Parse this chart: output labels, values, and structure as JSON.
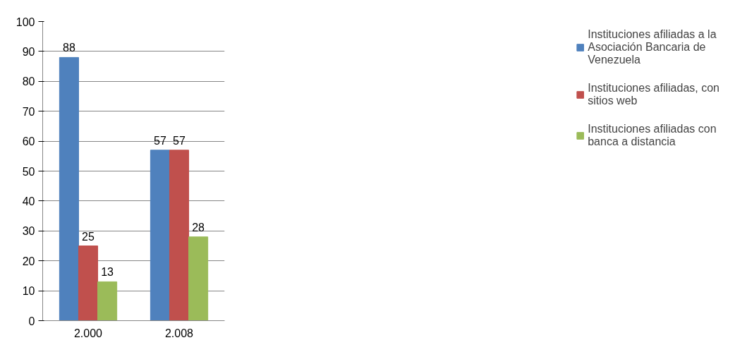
{
  "chart_data": {
    "type": "bar",
    "categories": [
      "2.000",
      "2.008"
    ],
    "series": [
      {
        "name": "Instituciones afiliadas a la Asociación Bancaria de Venezuela",
        "color": "#4f81bd",
        "values": [
          88,
          57
        ]
      },
      {
        "name": "Instituciones afiliadas, con sitios web",
        "color": "#c0504d",
        "values": [
          25,
          57
        ]
      },
      {
        "name": "Instituciones afiliadas con banca a distancia",
        "color": "#9bbb59",
        "values": [
          13,
          28
        ]
      }
    ],
    "ylim": [
      0,
      100
    ],
    "yticks": [
      0,
      10,
      20,
      30,
      40,
      50,
      60,
      70,
      80,
      90,
      100
    ],
    "grid": "y",
    "legend": "right",
    "data_labels": true
  }
}
